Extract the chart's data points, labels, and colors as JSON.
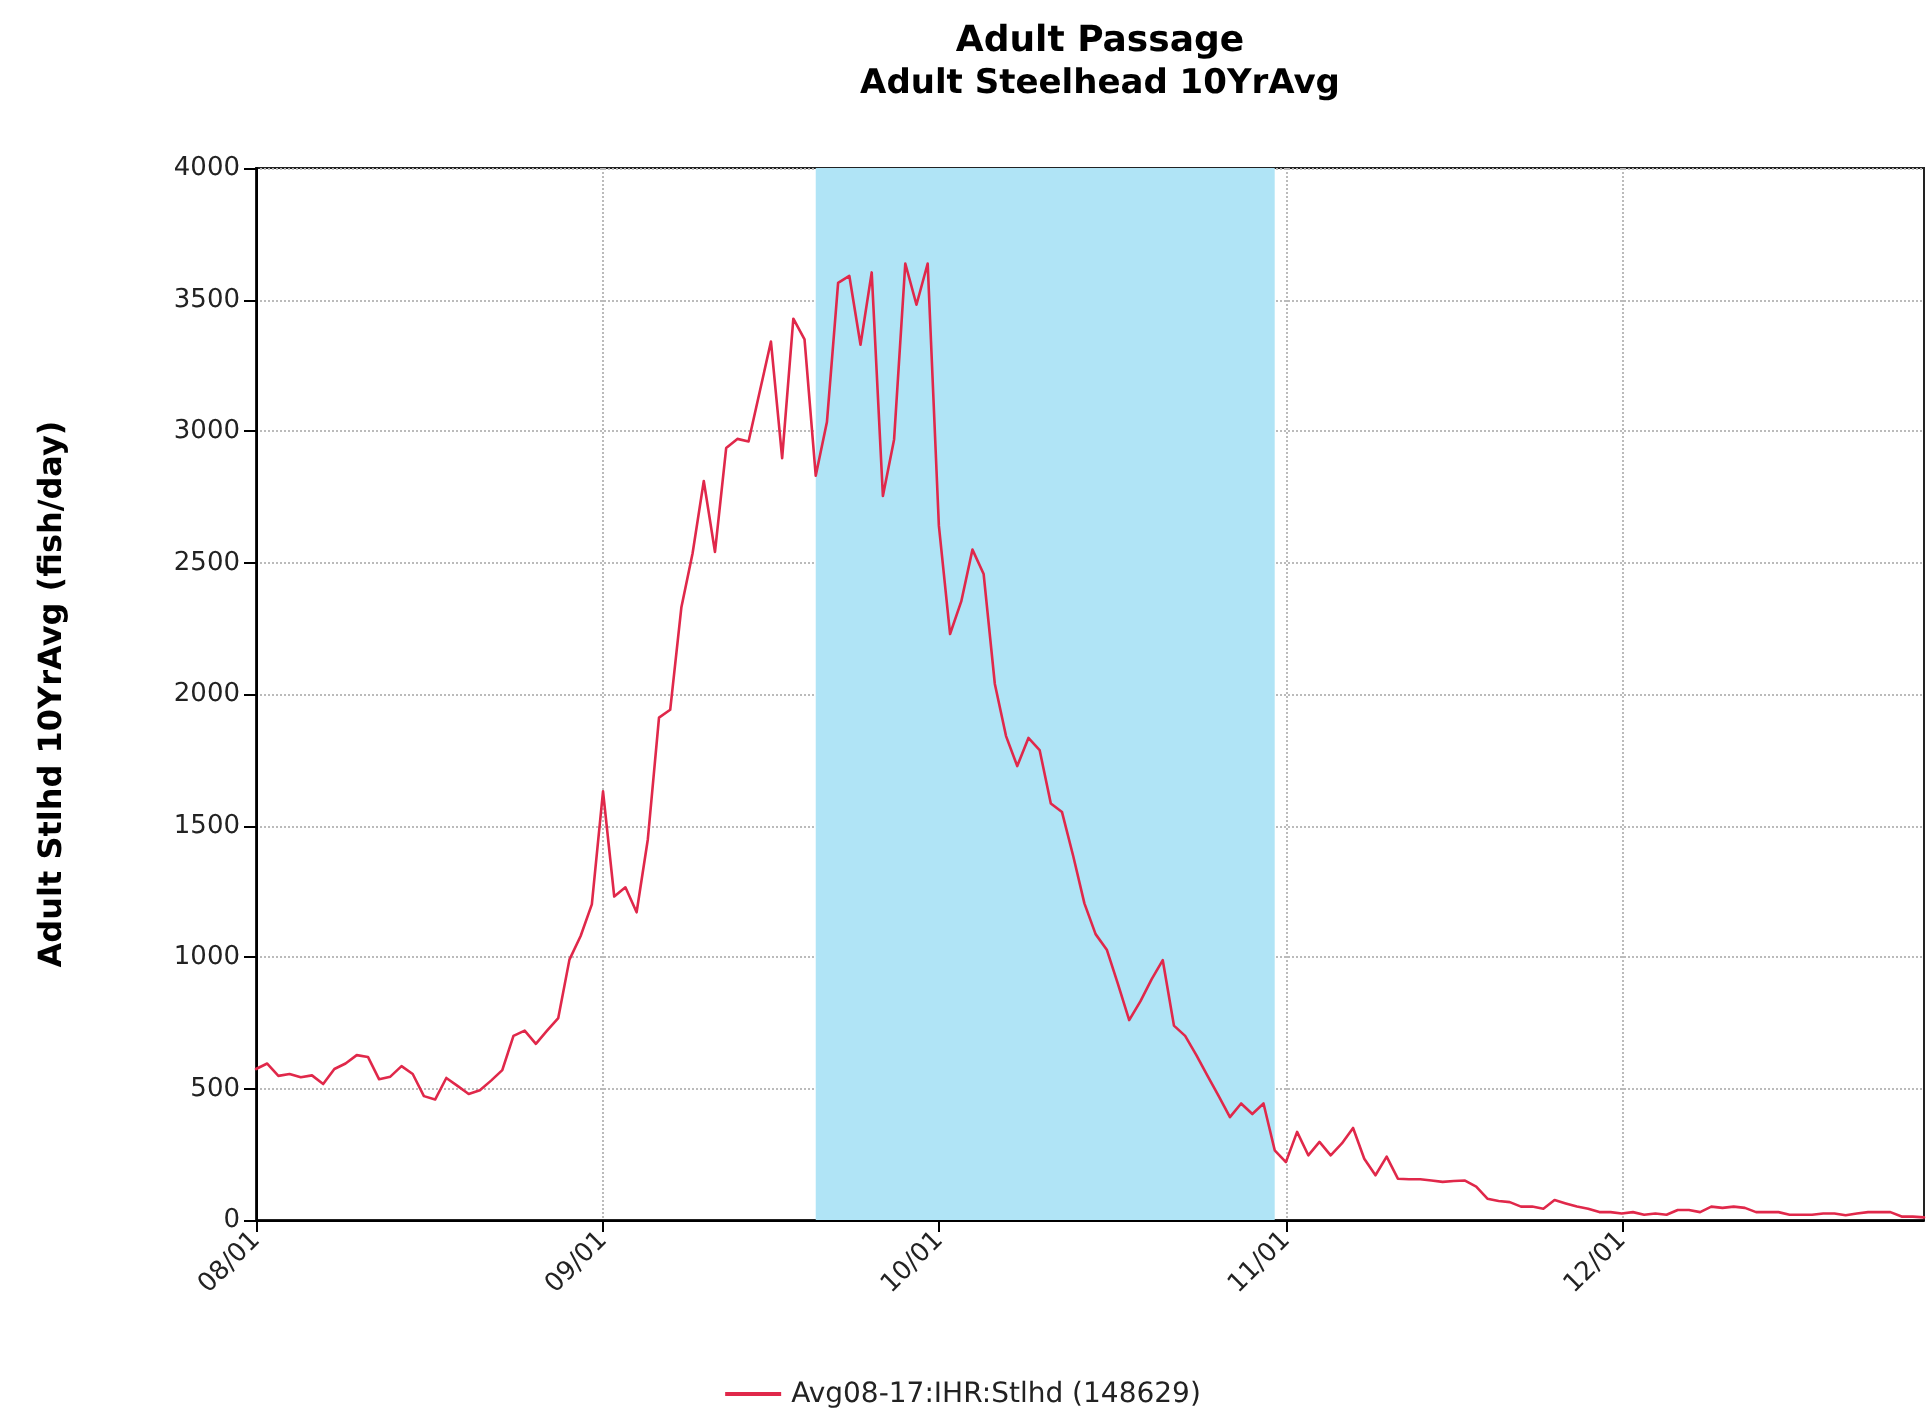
{
  "chart_data": {
    "type": "line",
    "title": "Adult Passage",
    "subtitle": "Adult Steelhead 10YrAvg",
    "ylabel": "Adult Stlhd 10YrAvg (fish/day)",
    "x": [
      "--08-01",
      "--08-02",
      "--08-03",
      "--08-04",
      "--08-05",
      "--08-06",
      "--08-07",
      "--08-08",
      "--08-09",
      "--08-10",
      "--08-11",
      "--08-12",
      "--08-13",
      "--08-14",
      "--08-15",
      "--08-16",
      "--08-17",
      "--08-18",
      "--08-19",
      "--08-20",
      "--08-21",
      "--08-22",
      "--08-23",
      "--08-24",
      "--08-25",
      "--08-26",
      "--08-27",
      "--08-28",
      "--08-29",
      "--08-30",
      "--08-31",
      "--09-01",
      "--09-02",
      "--09-03",
      "--09-04",
      "--09-05",
      "--09-06",
      "--09-07",
      "--09-08",
      "--09-09",
      "--09-10",
      "--09-11",
      "--09-12",
      "--09-13",
      "--09-14",
      "--09-15",
      "--09-16",
      "--09-17",
      "--09-18",
      "--09-19",
      "--09-20",
      "--09-21",
      "--09-22",
      "--09-23",
      "--09-24",
      "--09-25",
      "--09-26",
      "--09-27",
      "--09-28",
      "--09-29",
      "--09-30",
      "--10-01",
      "--10-02",
      "--10-03",
      "--10-04",
      "--10-05",
      "--10-06",
      "--10-07",
      "--10-08",
      "--10-09",
      "--10-10",
      "--10-11",
      "--10-12",
      "--10-13",
      "--10-14",
      "--10-15",
      "--10-16",
      "--10-17",
      "--10-18",
      "--10-19",
      "--10-20",
      "--10-21",
      "--10-22",
      "--10-23",
      "--10-24",
      "--10-25",
      "--10-26",
      "--10-27",
      "--10-28",
      "--10-29",
      "--10-30",
      "--10-31",
      "--11-01",
      "--11-02",
      "--11-03",
      "--11-04",
      "--11-05",
      "--11-06",
      "--11-07",
      "--11-08",
      "--11-09",
      "--11-10",
      "--11-11",
      "--11-12",
      "--11-13",
      "--11-14",
      "--11-15",
      "--11-16",
      "--11-17",
      "--11-18",
      "--11-19",
      "--11-20",
      "--11-21",
      "--11-22",
      "--11-23",
      "--11-24",
      "--11-25",
      "--11-26",
      "--11-27",
      "--11-28",
      "--11-29",
      "--11-30",
      "--12-01",
      "--12-02",
      "--12-03",
      "--12-04",
      "--12-05",
      "--12-06",
      "--12-07",
      "--12-08",
      "--12-09",
      "--12-10",
      "--12-11",
      "--12-12",
      "--12-13",
      "--12-14",
      "--12-15",
      "--12-16",
      "--12-17",
      "--12-18",
      "--12-19",
      "--12-20",
      "--12-21",
      "--12-22",
      "--12-23",
      "--12-24",
      "--12-25",
      "--12-26",
      "--12-27",
      "--12-28"
    ],
    "series": [
      {
        "name": "Avg08-17:IHR:Stlhd (148629)",
        "color": "#e0284a",
        "values": [
          574,
          595,
          548,
          555,
          543,
          550,
          517,
          574,
          595,
          627,
          620,
          535,
          545,
          585,
          555,
          471,
          458,
          540,
          510,
          479,
          493,
          530,
          570,
          700,
          720,
          670,
          720,
          768,
          990,
          1080,
          1200,
          1630,
          1230,
          1265,
          1170,
          1447,
          1910,
          1940,
          2330,
          2535,
          2810,
          2540,
          2935,
          2970,
          2960,
          3150,
          3340,
          2897,
          3427,
          3348,
          2830,
          3034,
          3563,
          3590,
          3328,
          3603,
          2753,
          2968,
          3637,
          3480,
          3637,
          2640,
          2228,
          2352,
          2549,
          2456,
          2038,
          1840,
          1726,
          1833,
          1787,
          1584,
          1551,
          1384,
          1204,
          1087,
          1028,
          897,
          760,
          831,
          915,
          988,
          739,
          700,
          627,
          548,
          471,
          391,
          443,
          403,
          443,
          265,
          220,
          335,
          246,
          297,
          246,
          291,
          350,
          233,
          170,
          241,
          157,
          155,
          155,
          150,
          145,
          148,
          150,
          127,
          81,
          72,
          68,
          51,
          51,
          43,
          76,
          63,
          51,
          43,
          30,
          30,
          25,
          30,
          20,
          25,
          20,
          38,
          38,
          30,
          51,
          46,
          51,
          46,
          30,
          30,
          30,
          20,
          20,
          20,
          25,
          25,
          18,
          25,
          30,
          30,
          30,
          13,
          13,
          10
        ]
      }
    ],
    "xlim": [
      "--08-01",
      "--12-28"
    ],
    "xticks": [
      {
        "value": "--08-01",
        "label": "08/01"
      },
      {
        "value": "--09-01",
        "label": "09/01"
      },
      {
        "value": "--10-01",
        "label": "10/01"
      },
      {
        "value": "--11-01",
        "label": "11/01"
      },
      {
        "value": "--12-01",
        "label": "12/01"
      }
    ],
    "ylim": [
      0,
      4000
    ],
    "yticks": [
      0,
      500,
      1000,
      1500,
      2000,
      2500,
      3000,
      3500,
      4000
    ],
    "bands": [
      {
        "axis": "x",
        "from": "--09-20",
        "to": "--10-31",
        "color": "#b0e4f6"
      }
    ],
    "grid": true,
    "legend": "bottom",
    "marker": "none",
    "line_style": "solid"
  }
}
